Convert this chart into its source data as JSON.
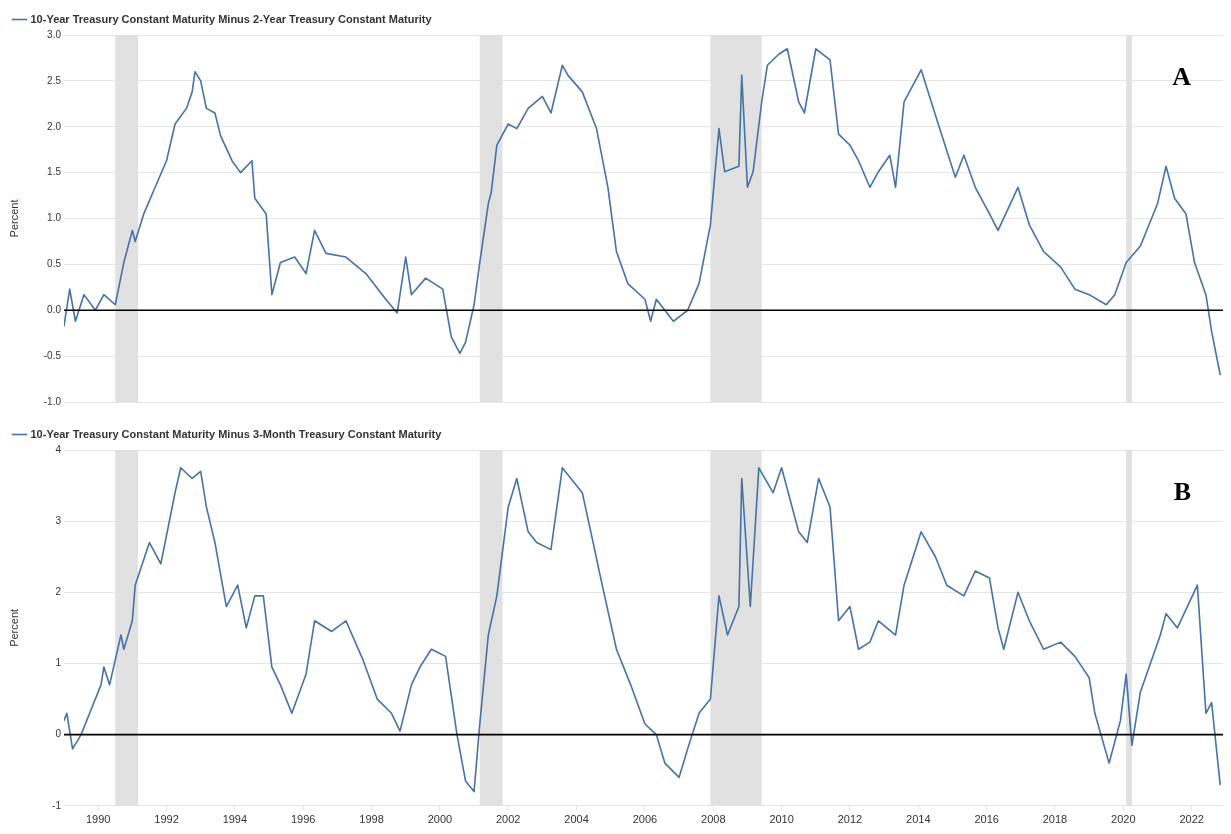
{
  "chart_data": [
    {
      "type": "line",
      "ylabel": "Percent",
      "legend": "top left",
      "grid": "y",
      "marker": "none",
      "line_style": "solid",
      "tick_labels": "y",
      "xlim": [
        "1989-01",
        "2022-12"
      ],
      "ylim": [
        -1,
        3
      ],
      "yticks": [
        {
          "value": -1,
          "label": "-1.0"
        },
        {
          "value": -0.5,
          "label": "-0.5"
        },
        {
          "value": 0,
          "label": "0.0"
        },
        {
          "value": 0.5,
          "label": "0.5"
        },
        {
          "value": 1,
          "label": "1.0"
        },
        {
          "value": 1.5,
          "label": "1.5"
        },
        {
          "value": 2,
          "label": "2.0"
        },
        {
          "value": 2.5,
          "label": "2.5"
        },
        {
          "value": 3,
          "label": "3.0"
        }
      ],
      "ref_lines": [
        {
          "axis": "y",
          "value": 0,
          "color": "#000000"
        }
      ],
      "bands": [
        {
          "axis": "x",
          "from": "1990-07",
          "to": "1991-03",
          "color": "#e1e1e1"
        },
        {
          "axis": "x",
          "from": "2001-03",
          "to": "2001-11",
          "color": "#e1e1e1"
        },
        {
          "axis": "x",
          "from": "2007-12",
          "to": "2009-06",
          "color": "#e1e1e1"
        },
        {
          "axis": "x",
          "from": "2020-02",
          "to": "2020-04",
          "color": "#e1e1e1"
        }
      ],
      "annotations": [
        "A"
      ],
      "series": [
        {
          "name": "10-Year Treasury Constant Maturity Minus 2-Year Treasury Constant Maturity",
          "color": "#4572a7",
          "x": [
            "1989-01",
            "1989-03",
            "1989-05",
            "1989-08",
            "1989-12",
            "1990-03",
            "1990-07",
            "1990-10",
            "1991-01",
            "1991-02",
            "1991-05",
            "1991-09",
            "1992-01",
            "1992-04",
            "1992-08",
            "1992-10",
            "1992-11",
            "1993-01",
            "1993-03",
            "1993-06",
            "1993-08",
            "1993-12",
            "1994-03",
            "1994-07",
            "1994-08",
            "1994-12",
            "1995-02",
            "1995-05",
            "1995-10",
            "1996-02",
            "1996-05",
            "1996-09",
            "1997-04",
            "1997-11",
            "1998-06",
            "1998-10",
            "1999-01",
            "1999-03",
            "1999-08",
            "2000-02",
            "2000-05",
            "2000-08",
            "2000-10",
            "2001-01",
            "2001-03",
            "2001-06",
            "2001-07",
            "2001-09",
            "2002-01",
            "2002-04",
            "2002-08",
            "2003-01",
            "2003-04",
            "2003-08",
            "2003-10",
            "2004-03",
            "2004-08",
            "2004-12",
            "2005-03",
            "2005-07",
            "2006-01",
            "2006-03",
            "2006-05",
            "2006-11",
            "2007-04",
            "2007-08",
            "2007-12",
            "2008-03",
            "2008-05",
            "2008-10",
            "2008-11",
            "2009-01",
            "2009-03",
            "2009-06",
            "2009-08",
            "2009-12",
            "2010-03",
            "2010-07",
            "2010-09",
            "2011-01",
            "2011-06",
            "2011-09",
            "2012-01",
            "2012-04",
            "2012-08",
            "2012-11",
            "2013-03",
            "2013-05",
            "2013-08",
            "2014-02",
            "2014-08",
            "2015-02",
            "2015-05",
            "2015-09",
            "2016-02",
            "2016-05",
            "2016-12",
            "2017-04",
            "2017-09",
            "2018-03",
            "2018-08",
            "2019-01",
            "2019-07",
            "2019-10",
            "2020-02",
            "2020-07",
            "2021-01",
            "2021-04",
            "2021-07",
            "2021-11",
            "2022-02",
            "2022-06",
            "2022-08",
            "2022-11"
          ],
          "values": [
            -0.17,
            0.23,
            -0.12,
            0.17,
            0,
            0.17,
            0.06,
            0.52,
            0.87,
            0.75,
            1.05,
            1.34,
            1.63,
            2.03,
            2.2,
            2.38,
            2.6,
            2.5,
            2.2,
            2.15,
            1.9,
            1.63,
            1.5,
            1.63,
            1.22,
            1.05,
            0.17,
            0.52,
            0.58,
            0.4,
            0.87,
            0.62,
            0.58,
            0.4,
            0.12,
            -0.03,
            0.58,
            0.17,
            0.35,
            0.23,
            -0.29,
            -0.47,
            -0.35,
            0.06,
            0.52,
            1.16,
            1.28,
            1.8,
            2.03,
            1.98,
            2.2,
            2.33,
            2.15,
            2.67,
            2.56,
            2.38,
            1.98,
            1.34,
            0.64,
            0.29,
            0.12,
            -0.12,
            0.12,
            -0.12,
            0,
            0.29,
            0.93,
            1.98,
            1.51,
            1.57,
            2.56,
            1.34,
            1.51,
            2.27,
            2.67,
            2.79,
            2.85,
            2.27,
            2.15,
            2.85,
            2.73,
            1.92,
            1.8,
            1.63,
            1.34,
            1.51,
            1.69,
            1.34,
            2.27,
            2.62,
            2.03,
            1.45,
            1.69,
            1.34,
            1.05,
            0.87,
            1.34,
            0.93,
            0.64,
            0.47,
            0.23,
            0.17,
            0.06,
            0.17,
            0.52,
            0.7,
            1.16,
            1.57,
            1.22,
            1.05,
            0.52,
            0.17,
            -0.23,
            -0.7
          ]
        }
      ]
    },
    {
      "type": "line",
      "ylabel": "Percent",
      "legend": "top left",
      "grid": "y",
      "marker": "none",
      "line_style": "solid",
      "xlim": [
        "1989-01",
        "2022-12"
      ],
      "xticks": [
        "1990",
        "1992",
        "1994",
        "1996",
        "1998",
        "2000",
        "2002",
        "2004",
        "2006",
        "2008",
        "2010",
        "2012",
        "2014",
        "2016",
        "2018",
        "2020",
        "2022"
      ],
      "ylim": [
        -1,
        4
      ],
      "yticks": [
        -1,
        0,
        1,
        2,
        3,
        4
      ],
      "ref_lines": [
        {
          "axis": "y",
          "value": 0,
          "color": "#000000"
        }
      ],
      "bands": [
        {
          "axis": "x",
          "from": "1990-07",
          "to": "1991-03",
          "color": "#e1e1e1"
        },
        {
          "axis": "x",
          "from": "2001-03",
          "to": "2001-11",
          "color": "#e1e1e1"
        },
        {
          "axis": "x",
          "from": "2007-12",
          "to": "2009-06",
          "color": "#e1e1e1"
        },
        {
          "axis": "x",
          "from": "2020-02",
          "to": "2020-04",
          "color": "#e1e1e1"
        }
      ],
      "annotations": [
        "B"
      ],
      "series": [
        {
          "name": "10-Year Treasury Constant Maturity Minus 3-Month Treasury Constant Maturity",
          "color": "#4572a7",
          "x": [
            "1989-01",
            "1989-02",
            "1989-04",
            "1989-07",
            "1989-10",
            "1990-02",
            "1990-03",
            "1990-05",
            "1990-09",
            "1990-10",
            "1991-01",
            "1991-02",
            "1991-07",
            "1991-11",
            "1992-04",
            "1992-06",
            "1992-10",
            "1993-01",
            "1993-03",
            "1993-06",
            "1993-10",
            "1994-02",
            "1994-05",
            "1994-08",
            "1994-11",
            "1995-02",
            "1995-05",
            "1995-09",
            "1996-02",
            "1996-05",
            "1996-11",
            "1997-04",
            "1997-10",
            "1998-03",
            "1998-08",
            "1998-11",
            "1999-03",
            "1999-06",
            "1999-10",
            "2000-03",
            "2000-07",
            "2000-10",
            "2001-01",
            "2001-03",
            "2001-06",
            "2001-09",
            "2002-01",
            "2002-04",
            "2002-08",
            "2002-11",
            "2003-04",
            "2003-08",
            "2003-11",
            "2004-03",
            "2004-06",
            "2004-10",
            "2005-03",
            "2005-08",
            "2006-01",
            "2006-05",
            "2006-08",
            "2007-01",
            "2007-04",
            "2007-08",
            "2007-12",
            "2008-03",
            "2008-06",
            "2008-10",
            "2008-11",
            "2009-02",
            "2009-05",
            "2009-10",
            "2010-01",
            "2010-07",
            "2010-10",
            "2011-02",
            "2011-06",
            "2011-09",
            "2012-01",
            "2012-04",
            "2012-08",
            "2012-11",
            "2013-05",
            "2013-08",
            "2014-02",
            "2014-07",
            "2014-11",
            "2015-05",
            "2015-09",
            "2016-02",
            "2016-05",
            "2016-07",
            "2016-12",
            "2017-04",
            "2017-09",
            "2018-03",
            "2018-08",
            "2019-01",
            "2019-03",
            "2019-08",
            "2019-10",
            "2019-12",
            "2020-02",
            "2020-04",
            "2020-07",
            "2021-02",
            "2021-04",
            "2021-08",
            "2022-03",
            "2022-06",
            "2022-08",
            "2022-11"
          ],
          "values": [
            0.2,
            0.3,
            -0.2,
            0,
            0.3,
            0.7,
            0.95,
            0.7,
            1.4,
            1.2,
            1.6,
            2.1,
            2.7,
            2.4,
            3.4,
            3.75,
            3.6,
            3.7,
            3.2,
            2.7,
            1.8,
            2.1,
            1.5,
            1.95,
            1.95,
            0.95,
            0.7,
            0.3,
            0.85,
            1.6,
            1.45,
            1.6,
            1.05,
            0.5,
            0.3,
            0.05,
            0.7,
            0.95,
            1.2,
            1.1,
            0,
            -0.65,
            -0.8,
            0.15,
            1.4,
            1.95,
            3.2,
            3.6,
            2.85,
            2.7,
            2.6,
            3.75,
            3.6,
            3.4,
            2.85,
            2.1,
            1.2,
            0.7,
            0.15,
            0,
            -0.4,
            -0.6,
            -0.2,
            0.3,
            0.5,
            1.95,
            1.4,
            1.8,
            3.6,
            1.8,
            3.75,
            3.4,
            3.75,
            2.85,
            2.7,
            3.6,
            3.2,
            1.6,
            1.8,
            1.2,
            1.3,
            1.6,
            1.4,
            2.1,
            2.85,
            2.5,
            2.1,
            1.95,
            2.3,
            2.2,
            1.5,
            1.2,
            2,
            1.6,
            1.2,
            1.3,
            1.1,
            0.8,
            0.3,
            -0.4,
            -0.1,
            0.2,
            0.85,
            -0.15,
            0.6,
            1.4,
            1.7,
            1.5,
            2.1,
            0.3,
            0.45,
            -0.7
          ]
        }
      ]
    }
  ]
}
